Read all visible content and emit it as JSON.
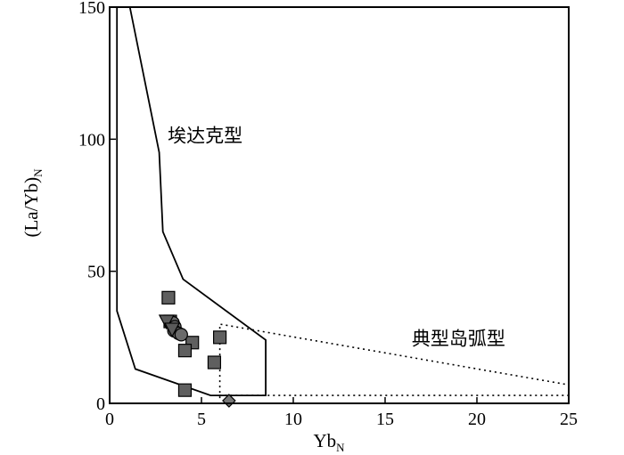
{
  "chart_data": {
    "type": "scatter",
    "title": "",
    "xlabel": "Yb",
    "xlabel_sub": "N",
    "ylabel": "(La/Yb)",
    "ylabel_sub": "N",
    "xlim": [
      0,
      25
    ],
    "ylim": [
      0,
      150
    ],
    "xticks": [
      0,
      5,
      10,
      15,
      20,
      25
    ],
    "yticks": [
      0,
      50,
      100,
      150
    ],
    "grid": false,
    "regions": [
      {
        "label": "埃达克型",
        "style": "solid",
        "outline": [
          [
            1.1,
            150
          ],
          [
            2.7,
            95
          ],
          [
            2.9,
            65
          ],
          [
            4.0,
            47
          ],
          [
            8.5,
            24
          ],
          [
            8.5,
            3
          ],
          [
            5.5,
            3
          ],
          [
            1.4,
            13
          ],
          [
            0.4,
            35
          ],
          [
            0.4,
            150
          ]
        ],
        "label_at": [
          5.2,
          99
        ]
      },
      {
        "label": "典型岛弧型",
        "style": "dotted",
        "outline": [
          [
            6.0,
            2
          ],
          [
            6.0,
            30
          ],
          [
            25,
            7
          ],
          [
            25,
            3
          ],
          [
            6.0,
            3
          ]
        ],
        "label_at": [
          19,
          22
        ]
      }
    ],
    "series": [
      {
        "marker": "square",
        "color": "#5f5f5f",
        "points": [
          [
            3.2,
            40
          ],
          [
            3.3,
            31
          ],
          [
            6.0,
            25
          ],
          [
            4.5,
            23
          ],
          [
            4.1,
            20
          ],
          [
            5.7,
            15.5
          ],
          [
            4.1,
            5
          ]
        ]
      },
      {
        "marker": "circle",
        "color": "#6a6a6a",
        "points": [
          [
            3.45,
            30.5
          ],
          [
            3.55,
            29
          ],
          [
            3.5,
            27.5
          ],
          [
            3.75,
            26.5
          ],
          [
            3.9,
            26
          ]
        ]
      },
      {
        "marker": "triangle-down",
        "color": "#5a5a5a",
        "points": [
          [
            3.1,
            31
          ],
          [
            3.4,
            28
          ]
        ]
      },
      {
        "marker": "diamond",
        "color": "#777777",
        "points": [
          [
            6.5,
            1
          ]
        ]
      }
    ]
  }
}
